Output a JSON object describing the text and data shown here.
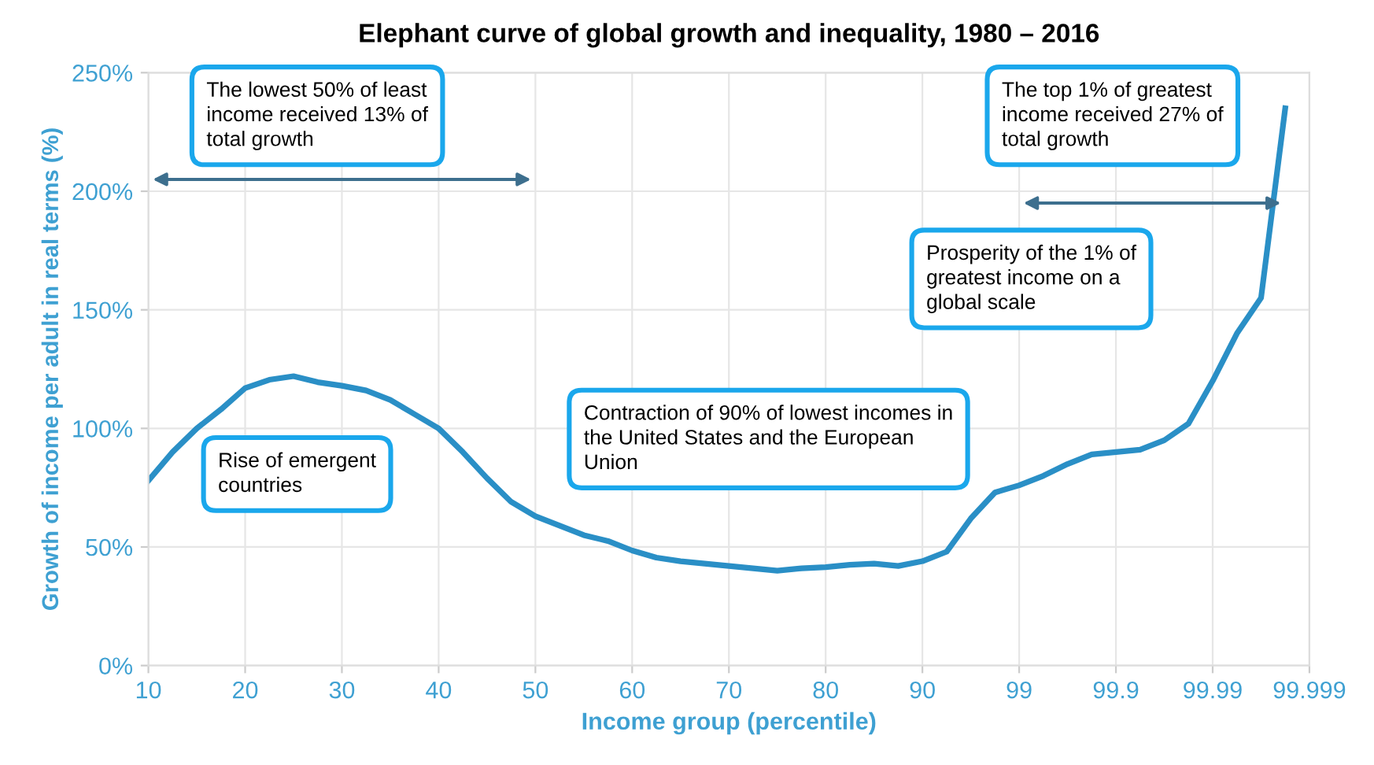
{
  "chart_data": {
    "type": "line",
    "title": "Elephant curve of global growth and inequality, 1980 – 2016",
    "xlabel": "Income group (percentile)",
    "ylabel": "Growth of income per adult in real terms (%)",
    "categories": [
      "10",
      null,
      null,
      null,
      "20",
      null,
      null,
      null,
      "30",
      null,
      null,
      null,
      "40",
      null,
      null,
      null,
      "50",
      null,
      null,
      null,
      "60",
      null,
      null,
      null,
      "70",
      null,
      null,
      null,
      "80",
      null,
      null,
      null,
      "90",
      null,
      null,
      null,
      "99",
      null,
      null,
      null,
      "99.9",
      null,
      null,
      null,
      "99.99",
      null,
      null,
      null,
      "99.999"
    ],
    "series": [
      {
        "color": "#2a8fc6",
        "values": [
          78,
          90,
          100,
          108,
          117,
          120.5,
          122,
          119.5,
          118,
          116,
          112,
          106,
          100,
          90,
          79,
          69,
          63,
          59,
          55,
          52.5,
          48.5,
          45.5,
          44,
          43,
          42,
          41,
          40,
          41,
          41.5,
          42.5,
          43,
          42,
          44,
          48,
          62,
          73,
          76,
          80,
          85,
          89,
          90,
          91,
          95,
          102,
          120,
          140,
          155,
          235,
          null
        ]
      }
    ],
    "ylim": [
      0,
      250
    ],
    "yticks": [
      {
        "value": 0,
        "label": "0%"
      },
      {
        "value": 50,
        "label": "50%"
      },
      {
        "value": 100,
        "label": "100%"
      },
      {
        "value": 150,
        "label": "150%"
      },
      {
        "value": 200,
        "label": "200%"
      },
      {
        "value": 250,
        "label": "250%"
      }
    ],
    "grid": true,
    "marker": "none",
    "line_style": "solid",
    "annotations": [
      "The lowest 50% of least\nincome received 13% of\ntotal growth",
      "Rise of emergent\ncountries",
      "Contraction of 90% of lowest incomes in\nthe United States and the European\nUnion",
      "Prosperity of the 1% of\ngreatest income on a\nglobal scale",
      "The top 1% of greatest\nincome received 27% of\ntotal growth"
    ]
  }
}
